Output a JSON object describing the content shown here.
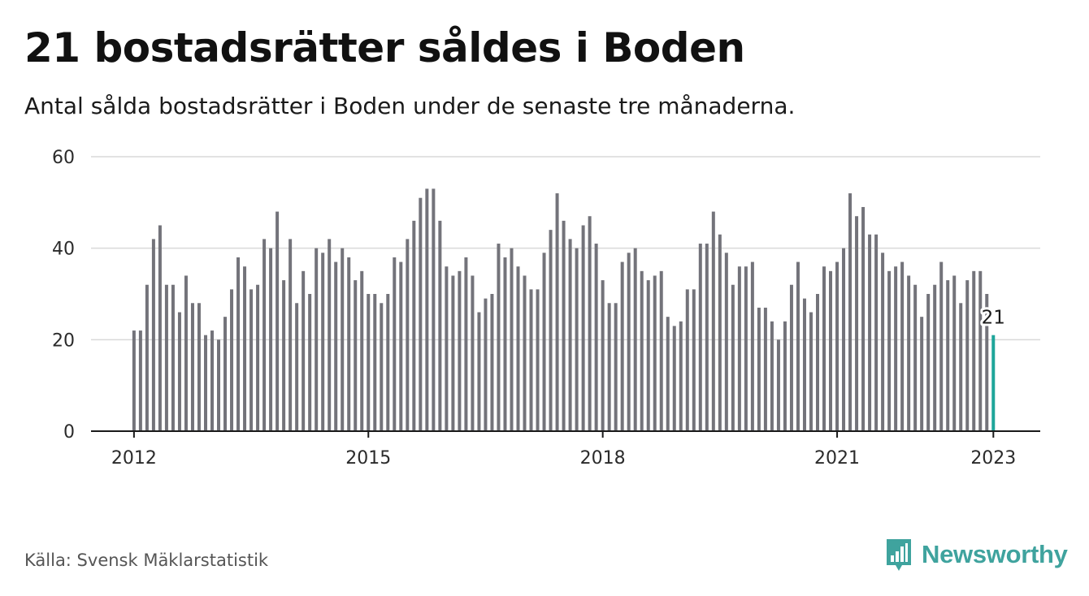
{
  "header": {
    "title": "21 bostadsrätter såldes i Boden",
    "subtitle": "Antal sålda bostadsrätter i Boden under de senaste tre månaderna."
  },
  "footer": {
    "source": "Källa: Svensk Mäklarstatistik",
    "brand": "Newsworthy"
  },
  "colors": {
    "bar": "#73737a",
    "highlight": "#1ea59a",
    "grid": "#d9d9d9",
    "axis": "#1a1a1a",
    "brand": "#3fa39e"
  },
  "chart_data": {
    "type": "bar",
    "title": "21 bostadsrätter såldes i Boden",
    "subtitle": "Antal sålda bostadsrätter i Boden under de senaste tre månaderna.",
    "xlabel": "",
    "ylabel": "",
    "ylim": [
      0,
      60
    ],
    "yticks": [
      0,
      20,
      40,
      60
    ],
    "grid": true,
    "x_start": 2012.0,
    "x_step": 0.08333,
    "xlim": [
      2011.45,
      2023.6
    ],
    "xticks": [
      {
        "value": 2012,
        "label": "2012"
      },
      {
        "value": 2015,
        "label": "2015"
      },
      {
        "value": 2018,
        "label": "2018"
      },
      {
        "value": 2021,
        "label": "2021"
      },
      {
        "value": 2023,
        "label": "2023"
      }
    ],
    "values": [
      22,
      22,
      32,
      42,
      45,
      32,
      32,
      26,
      34,
      28,
      28,
      21,
      22,
      20,
      25,
      31,
      38,
      36,
      31,
      32,
      42,
      40,
      48,
      33,
      42,
      28,
      35,
      30,
      40,
      39,
      42,
      37,
      40,
      38,
      33,
      35,
      30,
      30,
      28,
      30,
      38,
      37,
      42,
      46,
      51,
      53,
      53,
      46,
      36,
      34,
      35,
      38,
      34,
      26,
      29,
      30,
      41,
      38,
      40,
      36,
      34,
      31,
      31,
      39,
      44,
      52,
      46,
      42,
      40,
      45,
      47,
      41,
      33,
      28,
      28,
      37,
      39,
      40,
      35,
      33,
      34,
      35,
      25,
      23,
      24,
      31,
      31,
      41,
      41,
      48,
      43,
      39,
      32,
      36,
      36,
      37,
      27,
      27,
      24,
      20,
      24,
      32,
      37,
      29,
      26,
      30,
      36,
      35,
      37,
      40,
      52,
      47,
      49,
      43,
      43,
      39,
      35,
      36,
      37,
      34,
      32,
      25,
      30,
      32,
      37,
      33,
      34,
      28,
      33,
      35,
      35,
      30,
      21
    ],
    "highlight_last": true,
    "data_label": "21"
  }
}
